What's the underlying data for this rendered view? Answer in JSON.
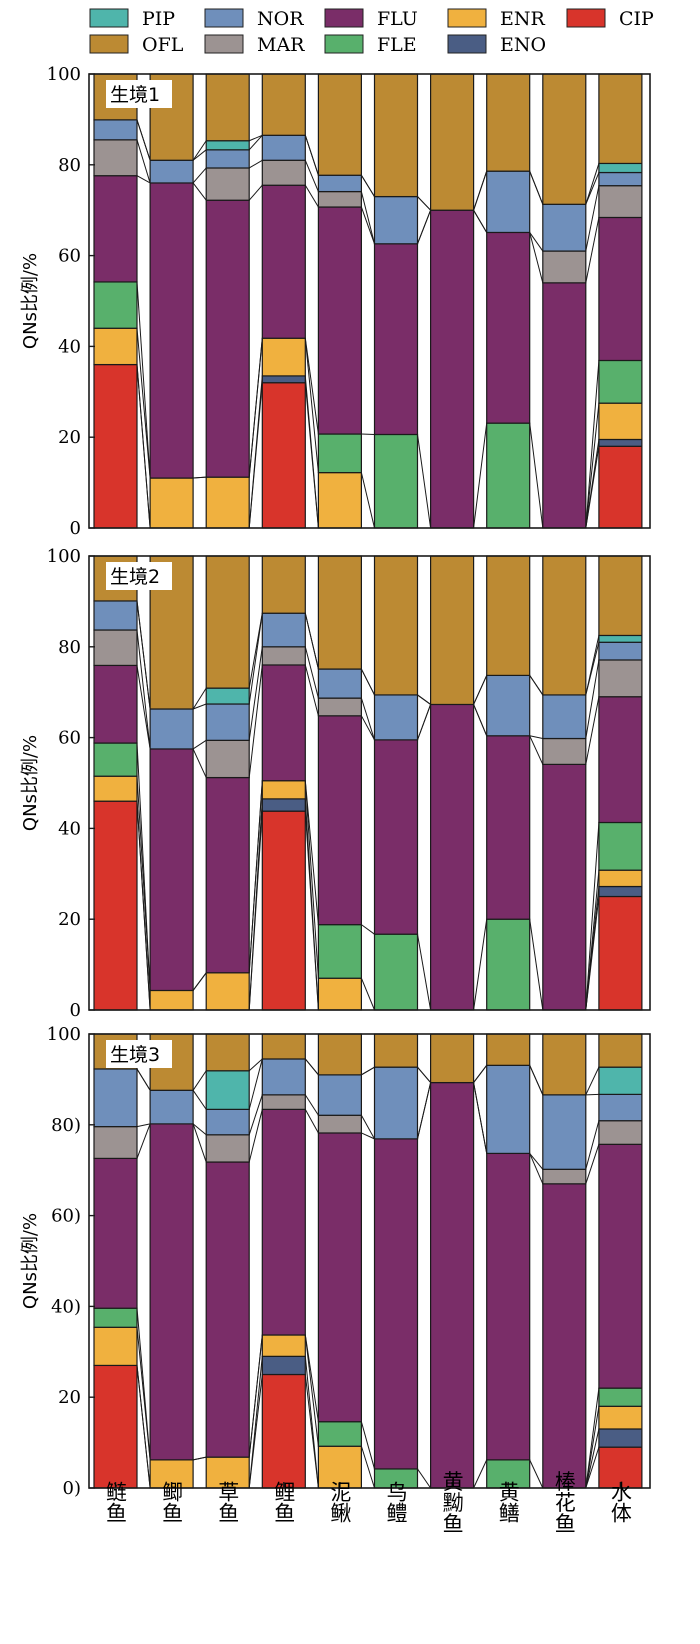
{
  "chart_data": {
    "type": "stacked-bar",
    "stack_order": [
      "CIP",
      "ENO",
      "ENR",
      "FLE",
      "FLU",
      "MAR",
      "NOR",
      "PIP",
      "OFL"
    ],
    "legend": {
      "placement": "top",
      "rows": [
        [
          "PIP",
          "NOR",
          "FLU",
          "ENR",
          "CIP"
        ],
        [
          "OFL",
          "MAR",
          "FLE",
          "ENO"
        ]
      ]
    },
    "colors": {
      "PIP": "#4fb5ab",
      "NOR": "#6f8fbb",
      "FLU": "#7a2d68",
      "ENR": "#f0b13f",
      "CIP": "#d8342b",
      "OFL": "#bc8a33",
      "MAR": "#9c9392",
      "FLE": "#58b06c",
      "ENO": "#4a5d84"
    },
    "categories": [
      "鲢鱼",
      "鲫鱼",
      "草鱼",
      "鲤鱼",
      "泥鳅",
      "乌鳢",
      "黄黝鱼",
      "黄鳝",
      "棒花鱼",
      "水体"
    ],
    "ylabel": "QNs比例/%",
    "ylim": [
      0,
      100
    ],
    "yticks": [
      "0",
      "20",
      "40",
      "60",
      "80",
      "100"
    ],
    "panels": [
      {
        "label": "生境1",
        "yticks": [
          "0",
          "20",
          "40",
          "60",
          "80",
          "100"
        ],
        "series": [
          {
            "name": "CIP",
            "values": [
              36,
              0,
              0,
              32,
              0,
              0,
              0,
              0,
              0,
              18
            ]
          },
          {
            "name": "ENO",
            "values": [
              0,
              0,
              0,
              1.5,
              0,
              0,
              0,
              0,
              0,
              1.5
            ]
          },
          {
            "name": "ENR",
            "values": [
              8,
              11,
              11.2,
              8.3,
              12.2,
              0,
              0,
              0,
              0,
              8
            ]
          },
          {
            "name": "FLE",
            "values": [
              10.2,
              0,
              0,
              0,
              8.5,
              20.6,
              0,
              23.1,
              0,
              9.4
            ]
          },
          {
            "name": "FLU",
            "values": [
              23.4,
              65,
              61,
              33.7,
              50,
              42,
              70,
              42,
              54,
              31.5
            ]
          },
          {
            "name": "MAR",
            "values": [
              7.9,
              0,
              7.1,
              5.5,
              3.4,
              0,
              0,
              0,
              7,
              7
            ]
          },
          {
            "name": "NOR",
            "values": [
              4.4,
              5,
              4,
              5.5,
              3.6,
              10.4,
              0,
              13.5,
              10.3,
              2.9
            ]
          },
          {
            "name": "PIP",
            "values": [
              0,
              0,
              2,
              0,
              0,
              0,
              0,
              0,
              0,
              2
            ]
          },
          {
            "name": "OFL",
            "values": [
              10.1,
              19,
              14.7,
              13.5,
              22.3,
              27,
              30,
              21.4,
              28.7,
              19.7
            ]
          }
        ]
      },
      {
        "label": "生境2",
        "yticks": [
          "0",
          "20",
          "40",
          "60",
          "80",
          "100"
        ],
        "series": [
          {
            "name": "CIP",
            "values": [
              46,
              0,
              0,
              43.8,
              0,
              0,
              0,
              0,
              0,
              25
            ]
          },
          {
            "name": "ENO",
            "values": [
              0,
              0,
              0,
              2.7,
              0,
              0,
              0,
              0,
              0,
              2.2
            ]
          },
          {
            "name": "ENR",
            "values": [
              5.5,
              4.3,
              8.2,
              4,
              7,
              0,
              0,
              0,
              0,
              3.6
            ]
          },
          {
            "name": "FLE",
            "values": [
              7.3,
              0,
              0,
              0,
              11.8,
              16.7,
              0,
              20,
              0,
              10.5
            ]
          },
          {
            "name": "FLU",
            "values": [
              17.1,
              53.2,
              43,
              25.5,
              46,
              42.8,
              67.3,
              40.4,
              54.1,
              27.7
            ]
          },
          {
            "name": "MAR",
            "values": [
              7.8,
              0,
              8.2,
              4,
              3.9,
              0,
              0,
              0,
              5.7,
              8.1
            ]
          },
          {
            "name": "NOR",
            "values": [
              6.4,
              8.8,
              8,
              7.4,
              6.4,
              9.9,
              0,
              13.3,
              9.6,
              3.9
            ]
          },
          {
            "name": "PIP",
            "values": [
              0,
              0,
              3.5,
              0,
              0,
              0,
              0,
              0,
              0,
              1.5
            ]
          },
          {
            "name": "OFL",
            "values": [
              9.9,
              33.7,
              29.1,
              12.6,
              24.9,
              30.6,
              32.7,
              26.3,
              30.6,
              17.5
            ]
          }
        ]
      },
      {
        "label": "生境3",
        "yticks": [
          "0)",
          "20",
          "40)",
          "60)",
          "80)",
          "100"
        ],
        "series": [
          {
            "name": "CIP",
            "values": [
              27,
              0,
              0,
              25,
              0,
              0,
              0,
              0,
              0,
              9
            ]
          },
          {
            "name": "ENO",
            "values": [
              0,
              0,
              0,
              4,
              0,
              0,
              0,
              0,
              0,
              4
            ]
          },
          {
            "name": "ENR",
            "values": [
              8.4,
              6.2,
              6.8,
              4.7,
              9.2,
              0,
              0,
              0,
              0,
              5
            ]
          },
          {
            "name": "FLE",
            "values": [
              4.2,
              0,
              0,
              0,
              5.4,
              4.2,
              0,
              6.2,
              0,
              4
            ]
          },
          {
            "name": "FLU",
            "values": [
              33,
              74,
              65,
              49.7,
              63.6,
              72.7,
              89.3,
              67.5,
              67,
              53.7
            ]
          },
          {
            "name": "MAR",
            "values": [
              7,
              0,
              6,
              3.2,
              3.9,
              0,
              0,
              0,
              3.2,
              5.2
            ]
          },
          {
            "name": "NOR",
            "values": [
              12.7,
              7.4,
              5.6,
              7.9,
              8.9,
              15.8,
              0,
              19.4,
              16.4,
              5.8
            ]
          },
          {
            "name": "PIP",
            "values": [
              0,
              0,
              8.5,
              0,
              0,
              0,
              0,
              0,
              0,
              6
            ]
          },
          {
            "name": "OFL",
            "values": [
              7.7,
              12.4,
              8.1,
              5.5,
              9,
              7.3,
              10.7,
              6.9,
              13.4,
              7.3
            ]
          }
        ]
      }
    ]
  }
}
